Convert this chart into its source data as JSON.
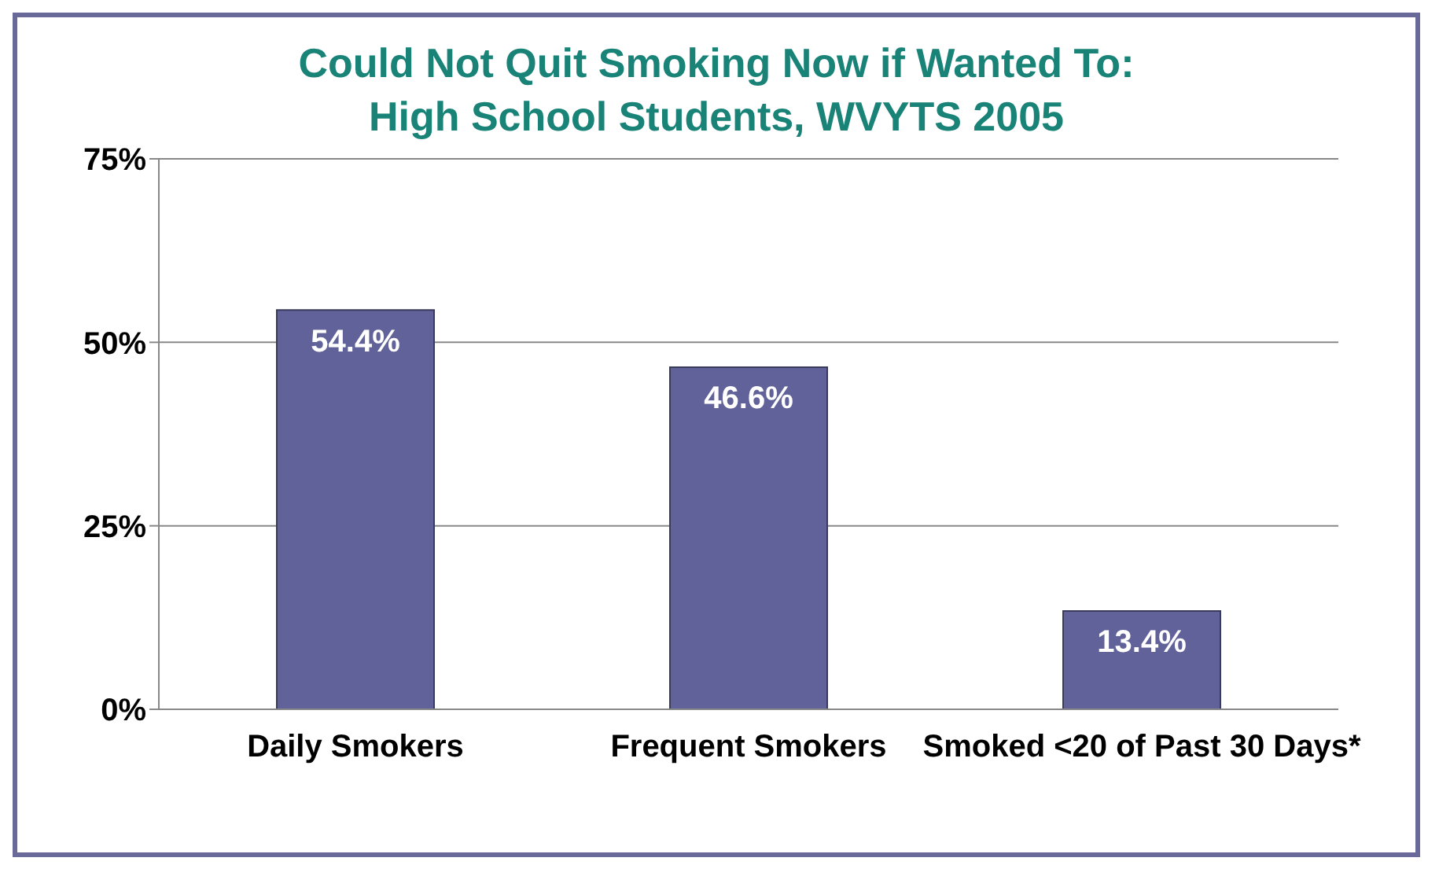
{
  "chart_data": {
    "type": "bar",
    "title": "Could Not Quit Smoking Now if Wanted To:\nHigh School Students, WVYTS 2005",
    "categories": [
      "Daily Smokers",
      "Frequent Smokers",
      "Smoked <20 of Past 30 Days*"
    ],
    "values": [
      54.4,
      46.6,
      13.4
    ],
    "color": "#62629a",
    "value_labels": [
      "54.4%",
      "46.6%",
      "13.4%"
    ],
    "ylim": [
      0,
      75
    ],
    "yticks": [
      {
        "value": 0,
        "label": "0%"
      },
      {
        "value": 25,
        "label": "25%"
      },
      {
        "value": 50,
        "label": "50%"
      },
      {
        "value": 75,
        "label": "75%"
      }
    ],
    "grid": "y"
  }
}
